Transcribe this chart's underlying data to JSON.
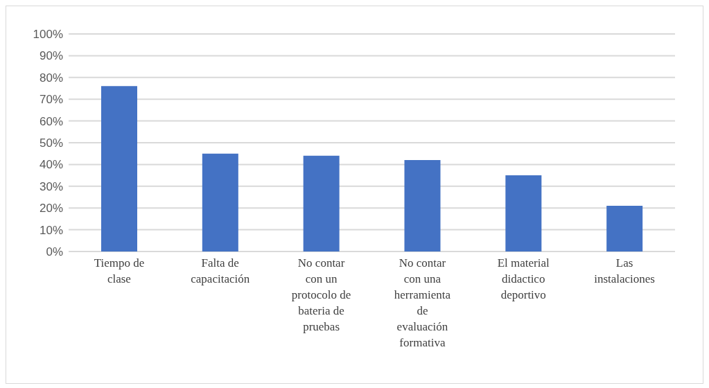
{
  "chart_data": {
    "type": "bar",
    "categories": [
      "Tiempo de clase",
      "Falta de capacitación",
      "No contar con un protocolo de bateria de pruebas",
      "No contar con una herramienta de evaluación formativa",
      "El material didactico deportivo",
      "Las instalaciones"
    ],
    "values": [
      76,
      45,
      44,
      42,
      35,
      21
    ],
    "color": "#4472c4",
    "ylim": [
      0,
      100
    ],
    "yticks": [
      {
        "value": 0,
        "label": "0%"
      },
      {
        "value": 10,
        "label": "10%"
      },
      {
        "value": 20,
        "label": "20%"
      },
      {
        "value": 30,
        "label": "30%"
      },
      {
        "value": 40,
        "label": "40%"
      },
      {
        "value": 50,
        "label": "50%"
      },
      {
        "value": 60,
        "label": "60%"
      },
      {
        "value": 70,
        "label": "70%"
      },
      {
        "value": 80,
        "label": "80%"
      },
      {
        "value": 90,
        "label": "90%"
      },
      {
        "value": 100,
        "label": "100%"
      }
    ],
    "grid": "y"
  }
}
